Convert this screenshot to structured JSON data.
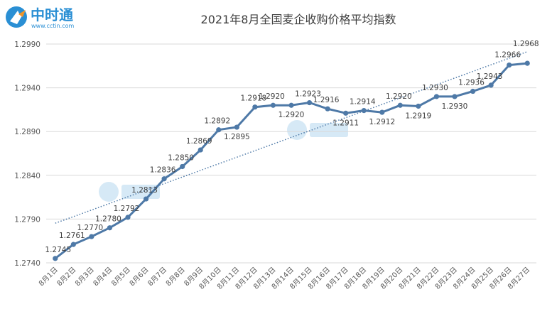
{
  "logo": {
    "brand": "中时通",
    "url": "www.cctin.com",
    "color_blue": "#2a8fd4",
    "color_orange": "#f0962a"
  },
  "chart_data": {
    "type": "line",
    "title": "2021年8月全国麦企收购价格平均指数",
    "xlabel": "",
    "ylabel": "",
    "categories": [
      "8月1日",
      "8月2日",
      "8月3日",
      "8月4日",
      "8月5日",
      "8月6日",
      "8月7日",
      "8月8日",
      "8月9日",
      "8月10日",
      "8月11日",
      "8月12日",
      "8月13日",
      "8月14日",
      "8月15日",
      "8月16日",
      "8月17日",
      "8月18日",
      "8月19日",
      "8月20日",
      "8月21日",
      "8月22日",
      "8月23日",
      "8月24日",
      "8月25日",
      "8月26日",
      "8月27日"
    ],
    "series": [
      {
        "values": [
          1.2745,
          1.2761,
          1.277,
          1.278,
          1.2792,
          1.2813,
          1.2836,
          1.285,
          1.2869,
          1.2892,
          1.2895,
          1.2918,
          1.292,
          1.292,
          1.2923,
          1.2916,
          1.2911,
          1.2914,
          1.2912,
          1.292,
          1.2919,
          1.293,
          1.293,
          1.2936,
          1.2943,
          1.2966,
          1.2968
        ],
        "labels": [
          "1.2745",
          "1.2761",
          "1.2770",
          "1.2780",
          "1.2792",
          "1.2813",
          "1.2836",
          "1.2850",
          "1.2869",
          "1.2892",
          "1.2895",
          "1.2918",
          "1.2920",
          "1.2920",
          "1.2923",
          "1.2916",
          "1.2911",
          "1.2914",
          "1.2912",
          "1.2920",
          "1.2919",
          "1.2930",
          "1.2930",
          "1.2936",
          "1.2943",
          "1.2966",
          "1.2968"
        ],
        "color": "#4e79a7"
      }
    ],
    "trendline": true,
    "trend_color": "#4e79a7",
    "ylim": [
      1.274,
      1.299
    ],
    "yticks": [
      "1.2990",
      "1.2940",
      "1.2890",
      "1.2840",
      "1.2790",
      "1.2740"
    ],
    "grid": true,
    "grid_color": "#d9d9d9",
    "legend": "none"
  }
}
